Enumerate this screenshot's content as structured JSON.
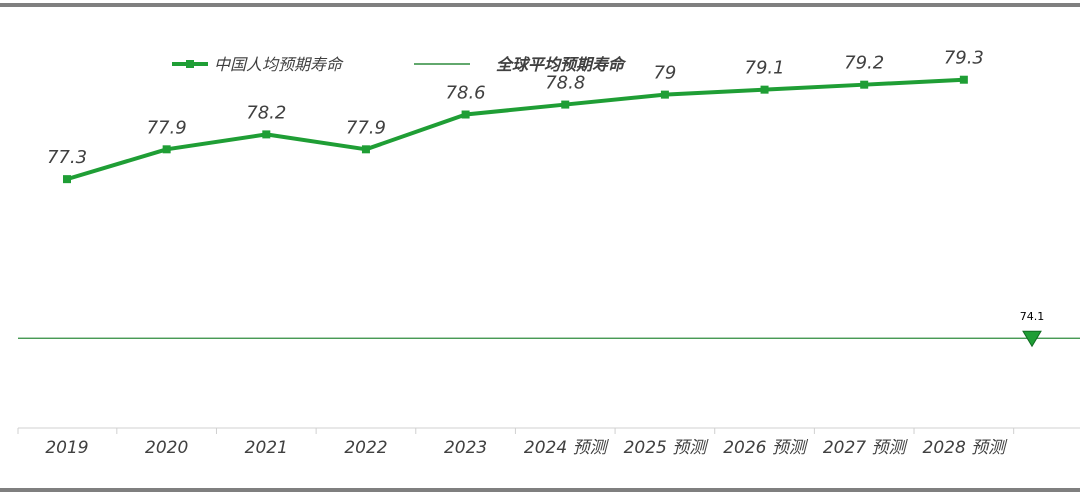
{
  "chart_data": {
    "type": "line",
    "categories": [
      "2019",
      "2020",
      "2021",
      "2022",
      "2023",
      "2024 预测",
      "2025 预测",
      "2026 预测",
      "2027 预测",
      "2028 预测"
    ],
    "series": [
      {
        "name": "中国人均预期寿命",
        "values": [
          77.3,
          77.9,
          78.2,
          77.9,
          78.6,
          78.8,
          79,
          79.1,
          79.2,
          79.3
        ],
        "value_labels": [
          "77.3",
          "77.9",
          "78.2",
          "77.9",
          "78.6",
          "78.8",
          "79",
          "79.1",
          "79.2",
          "79.3"
        ],
        "color": "#1f9e35"
      }
    ],
    "reference_lines": [
      {
        "name": "全球平均预期寿命",
        "value": 74.1,
        "value_label": "74.1",
        "color": "#2e8b3d",
        "marker_color": "#1f9e35"
      }
    ],
    "ylim": [
      73.3,
      80.3
    ],
    "legend_position": "top-left",
    "grid": false,
    "colors": {
      "frame": "#7f7f7f",
      "axis": "#d0d0d0",
      "text": "#404040"
    }
  }
}
